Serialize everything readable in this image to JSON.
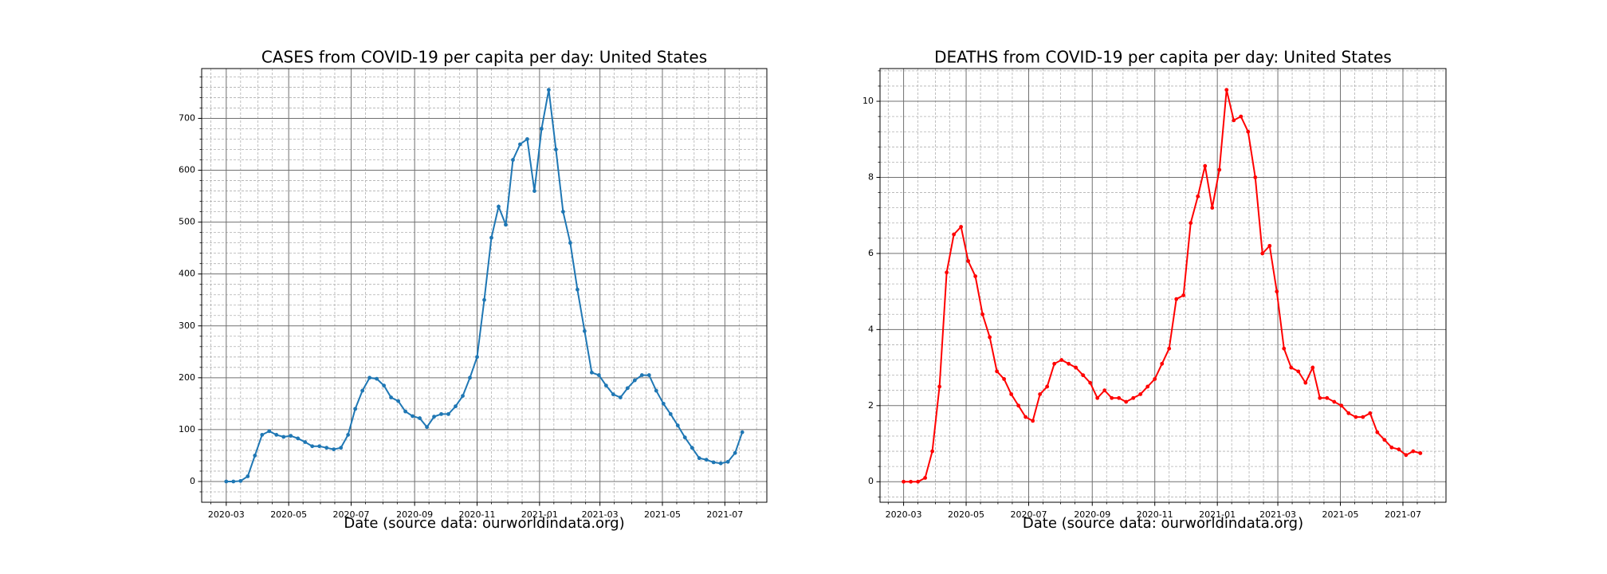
{
  "chart_data": [
    {
      "type": "line",
      "title": "CASES from COVID-19 per capita per day: United States",
      "x_label": "Date (source data: ourworldindata.org)",
      "x": [
        "2020-03-01",
        "2020-03-08",
        "2020-03-15",
        "2020-03-22",
        "2020-03-29",
        "2020-04-05",
        "2020-04-12",
        "2020-04-19",
        "2020-04-26",
        "2020-05-03",
        "2020-05-10",
        "2020-05-17",
        "2020-05-24",
        "2020-05-31",
        "2020-06-07",
        "2020-06-14",
        "2020-06-21",
        "2020-06-28",
        "2020-07-05",
        "2020-07-12",
        "2020-07-19",
        "2020-07-26",
        "2020-08-02",
        "2020-08-09",
        "2020-08-16",
        "2020-08-23",
        "2020-08-30",
        "2020-09-06",
        "2020-09-13",
        "2020-09-20",
        "2020-09-27",
        "2020-10-04",
        "2020-10-11",
        "2020-10-18",
        "2020-10-25",
        "2020-11-01",
        "2020-11-08",
        "2020-11-15",
        "2020-11-22",
        "2020-11-29",
        "2020-12-06",
        "2020-12-13",
        "2020-12-20",
        "2020-12-27",
        "2021-01-03",
        "2021-01-10",
        "2021-01-17",
        "2021-01-24",
        "2021-01-31",
        "2021-02-07",
        "2021-02-14",
        "2021-02-21",
        "2021-02-28",
        "2021-03-07",
        "2021-03-14",
        "2021-03-21",
        "2021-03-28",
        "2021-04-04",
        "2021-04-11",
        "2021-04-18",
        "2021-04-25",
        "2021-05-02",
        "2021-05-09",
        "2021-05-16",
        "2021-05-23",
        "2021-05-30",
        "2021-06-06",
        "2021-06-13",
        "2021-06-20",
        "2021-06-27",
        "2021-07-04",
        "2021-07-11",
        "2021-07-18"
      ],
      "series": [
        {
          "color": "#1f77b4",
          "values": [
            0,
            0,
            1,
            10,
            50,
            90,
            97,
            90,
            86,
            88,
            83,
            76,
            68,
            68,
            65,
            62,
            65,
            90,
            140,
            175,
            200,
            198,
            185,
            162,
            155,
            135,
            126,
            122,
            105,
            125,
            130,
            130,
            145,
            165,
            200,
            240,
            350,
            470,
            530,
            495,
            620,
            650,
            660,
            560,
            680,
            755,
            640,
            520,
            460,
            370,
            290,
            210,
            205,
            185,
            168,
            162,
            180,
            195,
            205,
            205,
            175,
            150,
            130,
            108,
            85,
            65,
            45,
            42,
            37,
            35,
            38,
            55,
            95
          ]
        }
      ],
      "xlim": [
        "2020-02-06",
        "2021-08-11"
      ],
      "xticks": [
        {
          "value": "2020-03-01",
          "label": "2020-03"
        },
        {
          "value": "2020-05-01",
          "label": "2020-05"
        },
        {
          "value": "2020-07-01",
          "label": "2020-07"
        },
        {
          "value": "2020-09-01",
          "label": "2020-09"
        },
        {
          "value": "2020-11-01",
          "label": "2020-11"
        },
        {
          "value": "2021-01-01",
          "label": "2021-01"
        },
        {
          "value": "2021-03-01",
          "label": "2021-03"
        },
        {
          "value": "2021-05-01",
          "label": "2021-05"
        },
        {
          "value": "2021-07-01",
          "label": "2021-07"
        }
      ],
      "minor_xticks": [
        "2020-02-15",
        "2020-03-15",
        "2020-04-01",
        "2020-04-15",
        "2020-05-15",
        "2020-06-01",
        "2020-06-15",
        "2020-07-15",
        "2020-08-01",
        "2020-08-15",
        "2020-09-15",
        "2020-10-01",
        "2020-10-15",
        "2020-11-15",
        "2020-12-01",
        "2020-12-15",
        "2021-01-15",
        "2021-02-01",
        "2021-02-15",
        "2021-03-15",
        "2021-04-01",
        "2021-04-15",
        "2021-05-15",
        "2021-06-01",
        "2021-06-15",
        "2021-07-15",
        "2021-08-01"
      ],
      "ylim": [
        -40,
        796
      ],
      "yticks": [
        0,
        100,
        200,
        300,
        400,
        500,
        600,
        700
      ],
      "minor_yticks": [
        -20,
        20,
        40,
        60,
        80,
        120,
        140,
        160,
        180,
        220,
        240,
        260,
        280,
        320,
        340,
        360,
        380,
        420,
        440,
        460,
        480,
        520,
        540,
        560,
        580,
        620,
        640,
        660,
        680,
        720,
        740,
        760,
        780
      ],
      "grid": true,
      "minor_grid": true,
      "marker": true
    },
    {
      "type": "line",
      "title": "DEATHS from COVID-19 per capita per day: United States",
      "x_label": "Date (source data: ourworldindata.org)",
      "x": [
        "2020-03-01",
        "2020-03-08",
        "2020-03-15",
        "2020-03-22",
        "2020-03-29",
        "2020-04-05",
        "2020-04-12",
        "2020-04-19",
        "2020-04-26",
        "2020-05-03",
        "2020-05-10",
        "2020-05-17",
        "2020-05-24",
        "2020-05-31",
        "2020-06-07",
        "2020-06-14",
        "2020-06-21",
        "2020-06-28",
        "2020-07-05",
        "2020-07-12",
        "2020-07-19",
        "2020-07-26",
        "2020-08-02",
        "2020-08-09",
        "2020-08-16",
        "2020-08-23",
        "2020-08-30",
        "2020-09-06",
        "2020-09-13",
        "2020-09-20",
        "2020-09-27",
        "2020-10-04",
        "2020-10-11",
        "2020-10-18",
        "2020-10-25",
        "2020-11-01",
        "2020-11-08",
        "2020-11-15",
        "2020-11-22",
        "2020-11-29",
        "2020-12-06",
        "2020-12-13",
        "2020-12-20",
        "2020-12-27",
        "2021-01-03",
        "2021-01-10",
        "2021-01-17",
        "2021-01-24",
        "2021-01-31",
        "2021-02-07",
        "2021-02-14",
        "2021-02-21",
        "2021-02-28",
        "2021-03-07",
        "2021-03-14",
        "2021-03-21",
        "2021-03-28",
        "2021-04-04",
        "2021-04-11",
        "2021-04-18",
        "2021-04-25",
        "2021-05-02",
        "2021-05-09",
        "2021-05-16",
        "2021-05-23",
        "2021-05-30",
        "2021-06-06",
        "2021-06-13",
        "2021-06-20",
        "2021-06-27",
        "2021-07-04",
        "2021-07-11",
        "2021-07-18"
      ],
      "series": [
        {
          "color": "#ff0000",
          "values": [
            0,
            0,
            0,
            0.1,
            0.8,
            2.5,
            5.5,
            6.5,
            6.7,
            5.8,
            5.4,
            4.4,
            3.8,
            2.9,
            2.7,
            2.3,
            2.0,
            1.7,
            1.6,
            2.3,
            2.5,
            3.1,
            3.2,
            3.1,
            3.0,
            2.8,
            2.6,
            2.2,
            2.4,
            2.2,
            2.2,
            2.1,
            2.2,
            2.3,
            2.5,
            2.7,
            3.1,
            3.5,
            4.8,
            4.9,
            6.8,
            7.5,
            8.3,
            7.2,
            8.2,
            10.3,
            9.5,
            9.6,
            9.2,
            8.0,
            6.0,
            6.2,
            5.0,
            3.5,
            3.0,
            2.9,
            2.6,
            3.0,
            2.2,
            2.2,
            2.1,
            2.0,
            1.8,
            1.7,
            1.7,
            1.8,
            1.3,
            1.1,
            0.9,
            0.85,
            0.7,
            0.8,
            0.75
          ]
        }
      ],
      "xlim": [
        "2020-02-07",
        "2021-08-12"
      ],
      "xticks": [
        {
          "value": "2020-03-01",
          "label": "2020-03"
        },
        {
          "value": "2020-05-01",
          "label": "2020-05"
        },
        {
          "value": "2020-07-01",
          "label": "2020-07"
        },
        {
          "value": "2020-09-01",
          "label": "2020-09"
        },
        {
          "value": "2020-11-01",
          "label": "2020-11"
        },
        {
          "value": "2021-01-01",
          "label": "2021-01"
        },
        {
          "value": "2021-03-01",
          "label": "2021-03"
        },
        {
          "value": "2021-05-01",
          "label": "2021-05"
        },
        {
          "value": "2021-07-01",
          "label": "2021-07"
        }
      ],
      "minor_xticks": [
        "2020-02-15",
        "2020-03-15",
        "2020-04-01",
        "2020-04-15",
        "2020-05-15",
        "2020-06-01",
        "2020-06-15",
        "2020-07-15",
        "2020-08-01",
        "2020-08-15",
        "2020-09-15",
        "2020-10-01",
        "2020-10-15",
        "2020-11-15",
        "2020-12-01",
        "2020-12-15",
        "2021-01-15",
        "2021-02-01",
        "2021-02-15",
        "2021-03-15",
        "2021-04-01",
        "2021-04-15",
        "2021-05-15",
        "2021-06-01",
        "2021-06-15",
        "2021-07-15",
        "2021-08-01"
      ],
      "ylim": [
        -0.54,
        10.86
      ],
      "yticks": [
        0,
        2,
        4,
        6,
        8,
        10
      ],
      "minor_yticks": [
        -0.4,
        0.4,
        0.8,
        1.2,
        1.6,
        2.4,
        2.8,
        3.2,
        3.6,
        4.4,
        4.8,
        5.2,
        5.6,
        6.4,
        6.8,
        7.2,
        7.6,
        8.4,
        8.8,
        9.2,
        9.6,
        10.4,
        10.8
      ],
      "grid": true,
      "minor_grid": true,
      "marker": true
    }
  ]
}
